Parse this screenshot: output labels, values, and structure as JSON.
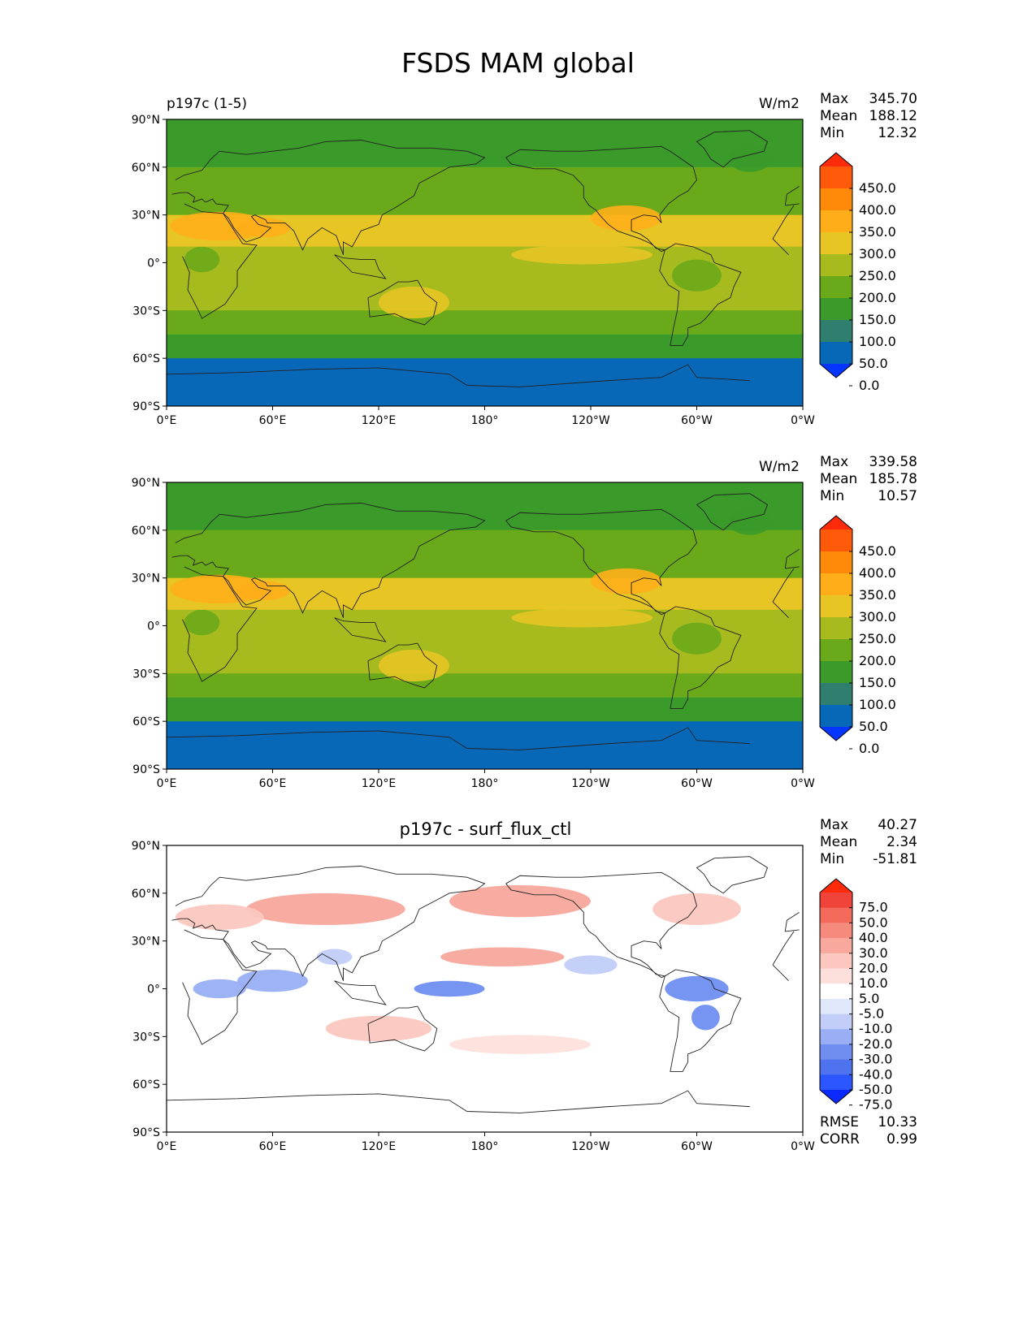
{
  "title": "FSDS MAM global",
  "panels": [
    {
      "id": "test",
      "left_title": "p197c (1-5)",
      "center_title": "",
      "units": "W/m2",
      "stats": [
        {
          "k": "Max",
          "v": "345.70"
        },
        {
          "k": "Mean",
          "v": "188.12"
        },
        {
          "k": "Min",
          "v": "12.32"
        }
      ],
      "levels": [
        "450.0",
        "400.0",
        "350.0",
        "300.0",
        "250.0",
        "200.0",
        "150.0",
        "100.0",
        "50.0",
        "0.0"
      ]
    },
    {
      "id": "reference",
      "left_title": "",
      "center_title": "",
      "units": "W/m2",
      "stats": [
        {
          "k": "Max",
          "v": "339.58"
        },
        {
          "k": "Mean",
          "v": "185.78"
        },
        {
          "k": "Min",
          "v": "10.57"
        }
      ],
      "levels": [
        "450.0",
        "400.0",
        "350.0",
        "300.0",
        "250.0",
        "200.0",
        "150.0",
        "100.0",
        "50.0",
        "0.0"
      ]
    },
    {
      "id": "difference",
      "left_title": "",
      "center_title": "p197c - surf_flux_ctl",
      "units": "",
      "stats": [
        {
          "k": "Max",
          "v": "40.27"
        },
        {
          "k": "Mean",
          "v": "2.34"
        },
        {
          "k": "Min",
          "v": "-51.81"
        }
      ],
      "levels": [
        "75.0",
        "50.0",
        "40.0",
        "30.0",
        "20.0",
        "10.0",
        "5.0",
        "-5.0",
        "-10.0",
        "-20.0",
        "-30.0",
        "-40.0",
        "-50.0",
        "-75.0"
      ],
      "metrics": [
        {
          "k": "RMSE",
          "v": "10.33"
        },
        {
          "k": "CORR",
          "v": "0.99"
        }
      ]
    }
  ],
  "axes": {
    "lat_ticks": [
      "90°N",
      "60°N",
      "30°N",
      "0°",
      "30°S",
      "60°S",
      "90°S"
    ],
    "lon_ticks": [
      "0°E",
      "60°E",
      "120°E",
      "180°",
      "120°W",
      "60°W",
      "0°W"
    ]
  },
  "chart_data": [
    {
      "type": "heatmap",
      "variable": "FSDS",
      "units": "W/m2",
      "stats": {
        "max": 345.7,
        "mean": 188.12,
        "min": 12.32
      },
      "levels": [
        0,
        50,
        100,
        150,
        200,
        250,
        300,
        350,
        400,
        450
      ],
      "colors": [
        "#0436ff",
        "#0868b8",
        "#2f7f6e",
        "#3a9a2a",
        "#6aaa1a",
        "#a8bb1e",
        "#e6c524",
        "#ffae1a",
        "#ff8a0a",
        "#ff5a0a",
        "#ff2a0a"
      ],
      "zonal_band_values": [
        {
          "lat": [
            60,
            90
          ],
          "value": 130
        },
        {
          "lat": [
            30,
            60
          ],
          "value": 170
        },
        {
          "lat": [
            10,
            30
          ],
          "value": 250
        },
        {
          "lat": [
            -15,
            10
          ],
          "value": 230
        },
        {
          "lat": [
            -30,
            -15
          ],
          "value": 240
        },
        {
          "lat": [
            -45,
            -30
          ],
          "value": 180
        },
        {
          "lat": [
            -60,
            -45
          ],
          "value": 110
        },
        {
          "lat": [
            -90,
            -60
          ],
          "value": 30
        }
      ]
    },
    {
      "type": "heatmap",
      "variable": "FSDS",
      "units": "W/m2",
      "stats": {
        "max": 339.58,
        "mean": 185.78,
        "min": 10.57
      },
      "levels": [
        0,
        50,
        100,
        150,
        200,
        250,
        300,
        350,
        400,
        450
      ],
      "zonal_band_values": [
        {
          "lat": [
            60,
            90
          ],
          "value": 125
        },
        {
          "lat": [
            30,
            60
          ],
          "value": 165
        },
        {
          "lat": [
            10,
            30
          ],
          "value": 260
        },
        {
          "lat": [
            -15,
            10
          ],
          "value": 240
        },
        {
          "lat": [
            -30,
            -15
          ],
          "value": 230
        },
        {
          "lat": [
            -45,
            -30
          ],
          "value": 175
        },
        {
          "lat": [
            -60,
            -45
          ],
          "value": 105
        },
        {
          "lat": [
            -90,
            -60
          ],
          "value": 28
        }
      ]
    },
    {
      "type": "heatmap",
      "variable": "FSDS difference",
      "stats": {
        "max": 40.27,
        "mean": 2.34,
        "min": -51.81,
        "rmse": 10.33,
        "corr": 0.99
      },
      "levels": [
        -75,
        -50,
        -40,
        -30,
        -20,
        -10,
        -5,
        5,
        10,
        20,
        30,
        40,
        50,
        75
      ]
    }
  ]
}
